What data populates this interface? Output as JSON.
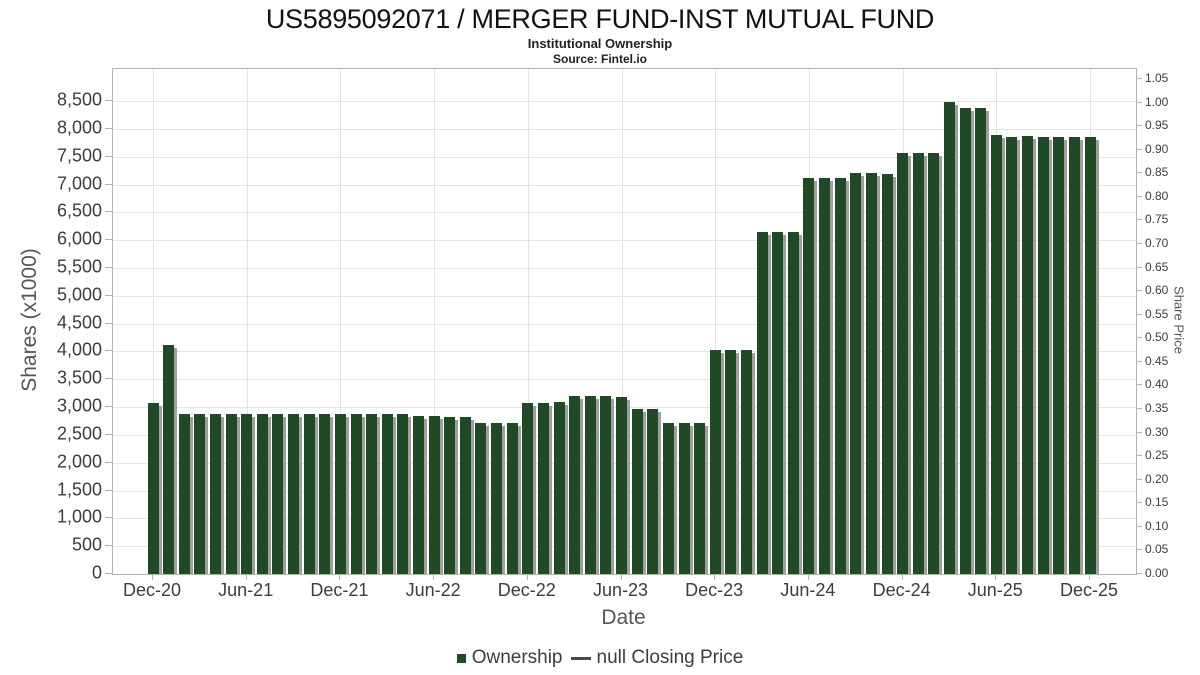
{
  "header": {
    "title": "US5895092071 / MERGER FUND-INST MUTUAL FUND",
    "subtitle": "Institutional Ownership",
    "source": "Source: Fintel.io"
  },
  "colors": {
    "bar": "#1f4a26",
    "bar_shadow": "#9f9f9f",
    "grid": "#e4e4e4",
    "axis_border": "#b3b3b3",
    "tick_text": "#3d3d3d",
    "axis_title_text": "#555555"
  },
  "legend": {
    "items": [
      {
        "label": "Ownership",
        "marker": "square",
        "color": "#1f4a26"
      },
      {
        "label": "null Closing Price",
        "marker": "line",
        "color": "#4a4a4a"
      }
    ]
  },
  "chart_data": {
    "type": "bar",
    "title": "US5895092071 / MERGER FUND-INST MUTUAL FUND",
    "subtitle": "Institutional Ownership",
    "xlabel": "Date",
    "ylabel": "Shares (x1000)",
    "ylabel_right": "Share Price",
    "grid": true,
    "legend_position": "bottom",
    "x": [
      "Dec-20",
      "Jan-21",
      "Feb-21",
      "Mar-21",
      "Apr-21",
      "May-21",
      "Jun-21",
      "Jul-21",
      "Aug-21",
      "Sep-21",
      "Oct-21",
      "Nov-21",
      "Dec-21",
      "Jan-22",
      "Feb-22",
      "Mar-22",
      "Apr-22",
      "May-22",
      "Jun-22",
      "Jul-22",
      "Aug-22",
      "Sep-22",
      "Oct-22",
      "Nov-22",
      "Dec-22",
      "Jan-23",
      "Feb-23",
      "Mar-23",
      "Apr-23",
      "May-23",
      "Jun-23",
      "Jul-23",
      "Aug-23",
      "Sep-23",
      "Oct-23",
      "Nov-23",
      "Dec-23",
      "Jan-24",
      "Feb-24",
      "Mar-24",
      "Apr-24",
      "May-24",
      "Jun-24",
      "Jul-24",
      "Aug-24",
      "Sep-24",
      "Oct-24",
      "Nov-24",
      "Dec-24",
      "Jan-25",
      "Feb-25",
      "Mar-25",
      "Apr-25",
      "May-25",
      "Jun-25",
      "Jul-25",
      "Aug-25",
      "Sep-25",
      "Oct-25",
      "Nov-25",
      "Dec-25"
    ],
    "series": [
      {
        "name": "Ownership",
        "values": [
          3070,
          4120,
          2870,
          2870,
          2870,
          2870,
          2870,
          2870,
          2870,
          2870,
          2870,
          2870,
          2870,
          2870,
          2880,
          2880,
          2880,
          2840,
          2840,
          2820,
          2820,
          2715,
          2715,
          2715,
          3070,
          3070,
          3090,
          3200,
          3200,
          3200,
          3180,
          2965,
          2965,
          2715,
          2715,
          2715,
          4020,
          4020,
          4030,
          6140,
          6140,
          6140,
          7110,
          7110,
          7110,
          7200,
          7200,
          7190,
          7560,
          7560,
          7560,
          8480,
          8370,
          8370,
          7890,
          7860,
          7870,
          7860,
          7860,
          7860,
          7860
        ]
      },
      {
        "name": "null Closing Price",
        "values": []
      }
    ],
    "y_left": {
      "range": [
        0,
        9075
      ],
      "tick_values": [
        0,
        500,
        1000,
        1500,
        2000,
        2500,
        3000,
        3500,
        4000,
        4500,
        5000,
        5500,
        6000,
        6500,
        7000,
        7500,
        8000,
        8500
      ],
      "tick_labels": [
        "0",
        "500",
        "1,000",
        "1,500",
        "2,000",
        "2,500",
        "3,000",
        "3,500",
        "4,000",
        "4,500",
        "5,000",
        "5,500",
        "6,000",
        "6,500",
        "7,000",
        "7,500",
        "8,000",
        "8,500"
      ]
    },
    "y_right": {
      "range": [
        0,
        1.0712
      ],
      "tick_values": [
        0.0,
        0.05,
        0.1,
        0.15,
        0.2,
        0.25,
        0.3,
        0.35,
        0.4,
        0.45,
        0.5,
        0.55,
        0.6,
        0.65,
        0.7,
        0.75,
        0.8,
        0.85,
        0.9,
        0.95,
        1.0,
        1.05
      ],
      "tick_labels": [
        "0.00",
        "0.05",
        "0.10",
        "0.15",
        "0.20",
        "0.25",
        "0.30",
        "0.35",
        "0.40",
        "0.45",
        "0.50",
        "0.55",
        "0.60",
        "0.65",
        "0.70",
        "0.75",
        "0.80",
        "0.85",
        "0.90",
        "0.95",
        "1.00",
        "1.05"
      ]
    },
    "x_ticks": {
      "labels": [
        "Dec-20",
        "Jun-21",
        "Dec-21",
        "Jun-22",
        "Dec-22",
        "Jun-23",
        "Dec-23",
        "Jun-24",
        "Dec-24",
        "Jun-25",
        "Dec-25"
      ],
      "month_indices": [
        0,
        6,
        12,
        18,
        24,
        30,
        36,
        42,
        48,
        54,
        60
      ]
    }
  }
}
